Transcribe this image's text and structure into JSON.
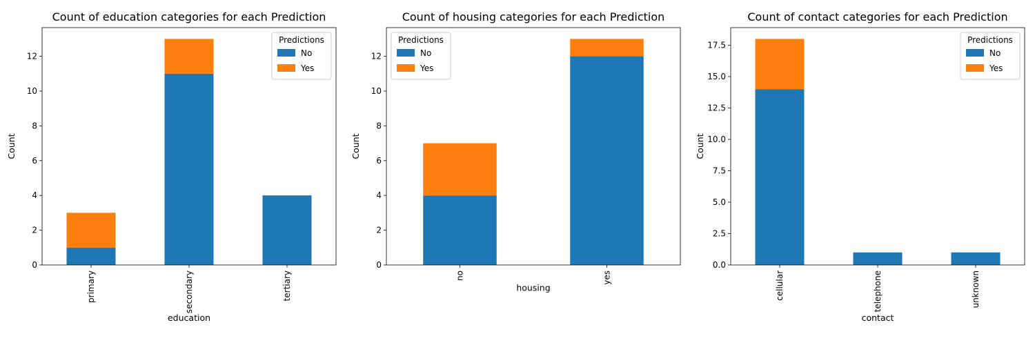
{
  "colors": {
    "no": "#1f77b4",
    "yes": "#ff7f0e"
  },
  "chart_data": [
    {
      "type": "bar",
      "stacked": true,
      "title": "Count of education categories for each Prediction",
      "xlabel": "education",
      "ylabel": "Count",
      "categories": [
        "primary",
        "secondary",
        "tertiary"
      ],
      "series": [
        {
          "name": "No",
          "values": [
            1,
            11,
            4
          ]
        },
        {
          "name": "Yes",
          "values": [
            2,
            2,
            0
          ]
        }
      ],
      "ylim": [
        0,
        13.65
      ],
      "yticks": [
        0,
        2,
        4,
        6,
        8,
        10,
        12
      ],
      "ytick_labels": [
        "0",
        "2",
        "4",
        "6",
        "8",
        "10",
        "12"
      ],
      "legend": {
        "title": "Predictions",
        "position": "top-right"
      }
    },
    {
      "type": "bar",
      "stacked": true,
      "title": "Count of housing categories for each Prediction",
      "xlabel": "housing",
      "ylabel": "Count",
      "categories": [
        "no",
        "yes"
      ],
      "series": [
        {
          "name": "No",
          "values": [
            4,
            12
          ]
        },
        {
          "name": "Yes",
          "values": [
            3,
            1
          ]
        }
      ],
      "ylim": [
        0,
        13.65
      ],
      "yticks": [
        0,
        2,
        4,
        6,
        8,
        10,
        12
      ],
      "ytick_labels": [
        "0",
        "2",
        "4",
        "6",
        "8",
        "10",
        "12"
      ],
      "legend": {
        "title": "Predictions",
        "position": "top-left"
      }
    },
    {
      "type": "bar",
      "stacked": true,
      "title": "Count of contact categories for each Prediction",
      "xlabel": "contact",
      "ylabel": "Count",
      "categories": [
        "cellular",
        "telephone",
        "unknown"
      ],
      "series": [
        {
          "name": "No",
          "values": [
            14,
            1,
            1
          ]
        },
        {
          "name": "Yes",
          "values": [
            4,
            0,
            0
          ]
        }
      ],
      "ylim": [
        0,
        18.9
      ],
      "yticks": [
        0,
        2.5,
        5,
        7.5,
        10,
        12.5,
        15,
        17.5
      ],
      "ytick_labels": [
        "0.0",
        "2.5",
        "5.0",
        "7.5",
        "10.0",
        "12.5",
        "15.0",
        "17.5"
      ],
      "legend": {
        "title": "Predictions",
        "position": "top-right"
      }
    }
  ]
}
